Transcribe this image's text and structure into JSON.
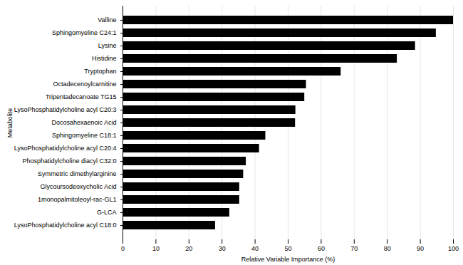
{
  "chart_data": {
    "type": "bar",
    "orientation": "horizontal",
    "x_label": "Relative Variable Importance (%)",
    "y_label": "Metabolite",
    "categories": [
      "Valline",
      "Sphingomyeline C24:1",
      "Lysine",
      "Histidine",
      "Tryptophan",
      "Octadecenoylcarnitine",
      "Tripentadecanoate TG15",
      "LysoPhosphatidylcholine acyl C20:3",
      "Docosahexaenoic Acid",
      "Sphingomyeline C18:1",
      "LysoPhosphatidylcholine acyl C20:4",
      "Phosphatidylcholine diacyl C32:0",
      "Symmetric dimethylarginine",
      "Glycoursodeoxycholic Acid",
      "1monopalmitoleoyl-rac-GL1",
      "G-LCA",
      "LysoPhosphatidylcholine acyl C18:0"
    ],
    "values": [
      100,
      94.8,
      88.5,
      83,
      66,
      55.5,
      55,
      52.3,
      52.2,
      43.2,
      41.3,
      37.3,
      36.5,
      35.3,
      35.3,
      32.3,
      28
    ],
    "color": "#000000",
    "xlim": [
      0,
      100
    ],
    "xticks": [
      0,
      10,
      20,
      30,
      40,
      50,
      60,
      70,
      80,
      90,
      100
    ],
    "grid": true
  }
}
